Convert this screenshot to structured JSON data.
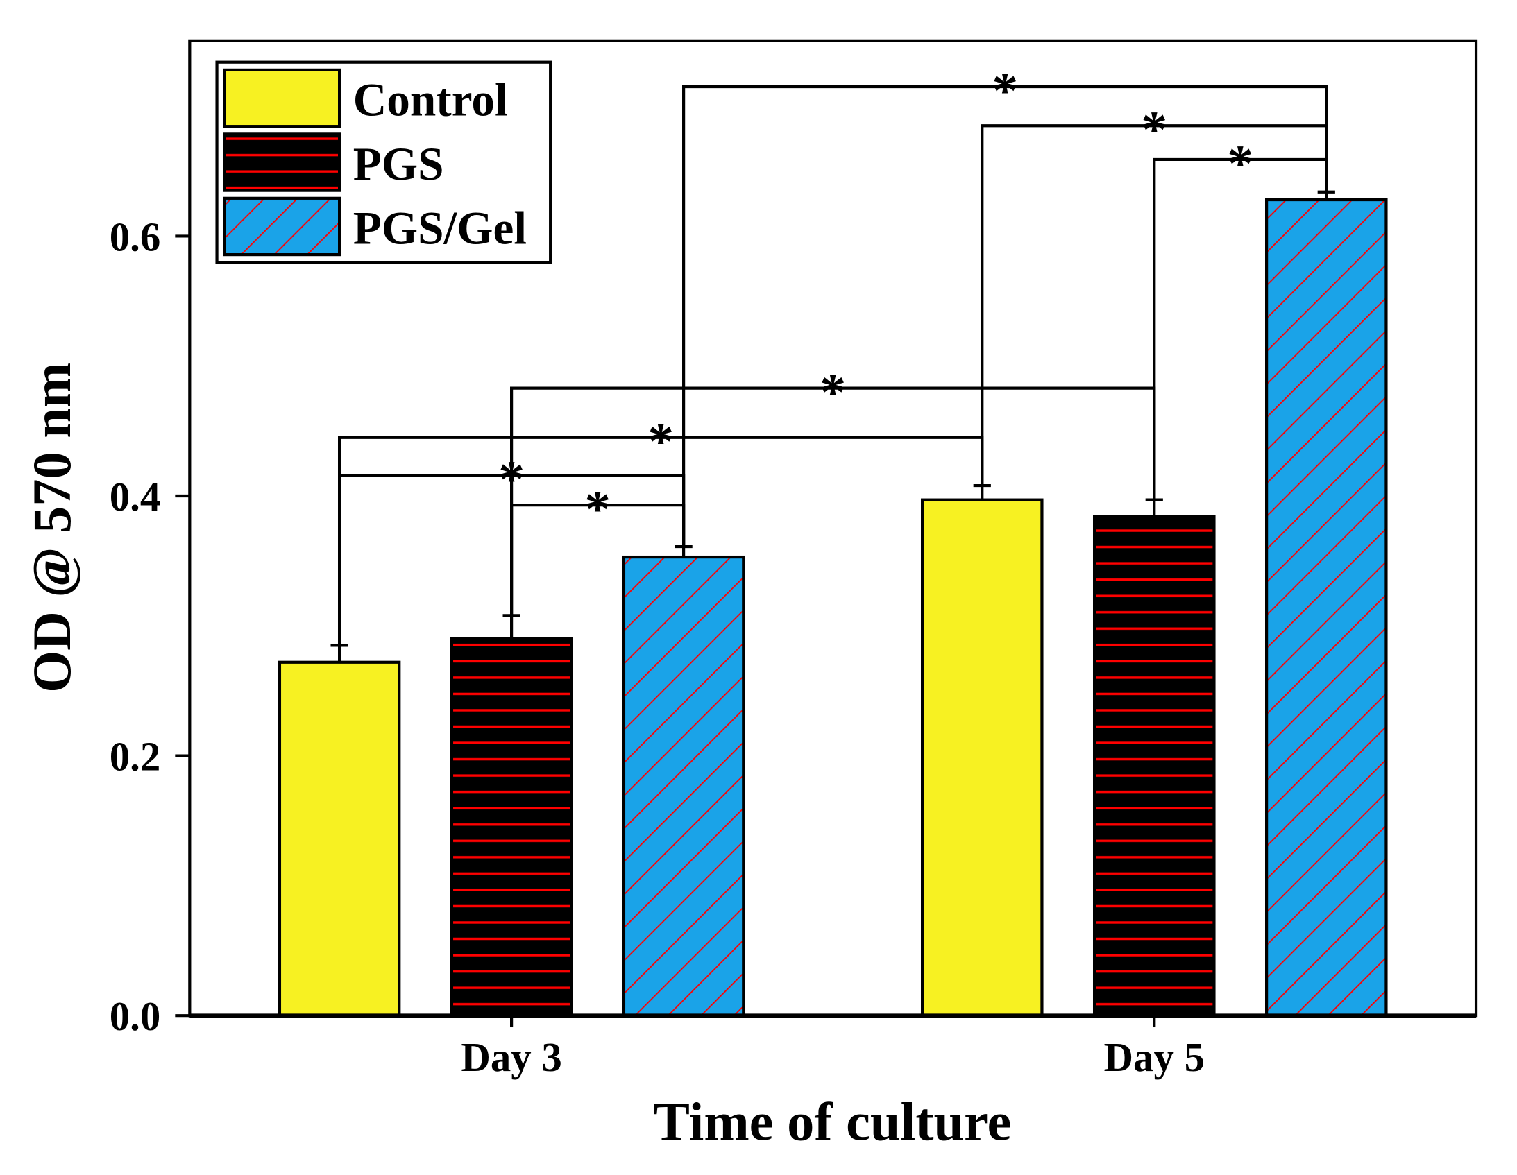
{
  "chart_data": {
    "type": "bar",
    "title": "",
    "xlabel": "Time of culture",
    "ylabel": "OD @ 570 nm",
    "ylim": [
      0,
      0.75
    ],
    "yticks": [
      "0.0",
      "0.2",
      "0.4",
      "0.6"
    ],
    "ytick_values": [
      0,
      0.2,
      0.4,
      0.6
    ],
    "categories": [
      "Day 3",
      "Day 5"
    ],
    "legend_position": "top-left",
    "series": [
      {
        "name": "Control",
        "values": [
          0.272,
          0.397
        ],
        "errors": [
          0.013,
          0.011
        ],
        "color": "#f7f122",
        "pattern": "solid"
      },
      {
        "name": "PGS",
        "values": [
          0.29,
          0.384
        ],
        "errors": [
          0.018,
          0.013
        ],
        "color": "#000000",
        "pattern": "horizontal-red"
      },
      {
        "name": "PGS/Gel",
        "values": [
          0.353,
          0.628
        ],
        "errors": [
          0.008,
          0.006
        ],
        "color": "#1aa3e8",
        "pattern": "diagonal-red"
      }
    ],
    "significance": [
      {
        "from": [
          0,
          2
        ],
        "to": [
          1,
          2
        ],
        "level": 0.715,
        "label": "*"
      },
      {
        "from": [
          1,
          0
        ],
        "to": [
          1,
          2
        ],
        "level": 0.685,
        "label": "*"
      },
      {
        "from": [
          1,
          1
        ],
        "to": [
          1,
          2
        ],
        "level": 0.659,
        "label": "*"
      },
      {
        "from": [
          0,
          1
        ],
        "to": [
          1,
          1
        ],
        "level": 0.483,
        "label": "*"
      },
      {
        "from": [
          0,
          0
        ],
        "to": [
          1,
          0
        ],
        "level": 0.445,
        "label": "*"
      },
      {
        "from": [
          0,
          0
        ],
        "to": [
          0,
          2
        ],
        "level": 0.416,
        "label": "*"
      },
      {
        "from": [
          0,
          1
        ],
        "to": [
          0,
          2
        ],
        "level": 0.393,
        "label": "*"
      }
    ]
  }
}
